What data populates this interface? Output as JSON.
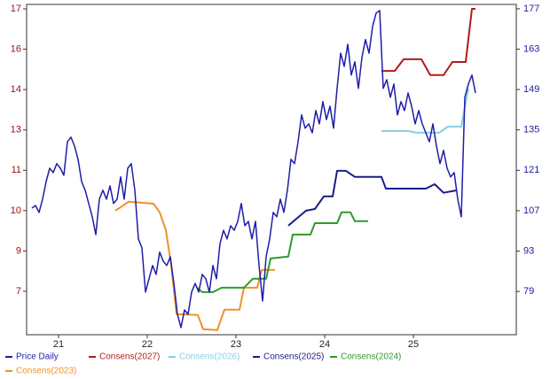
{
  "chart_data": {
    "type": "line",
    "xlim": [
      20.64,
      26.16
    ],
    "xticks": [
      21,
      22,
      23,
      24,
      25
    ],
    "ylim": [
      5.54,
      17.41
    ],
    "yticks": [
      {
        "value": 7.1,
        "label": "7"
      },
      {
        "value": 8.55,
        "label": "9"
      },
      {
        "value": 10.0,
        "label": "10"
      },
      {
        "value": 11.45,
        "label": "11"
      },
      {
        "value": 12.9,
        "label": "13"
      },
      {
        "value": 14.35,
        "label": "14"
      },
      {
        "value": 15.8,
        "label": "16"
      },
      {
        "value": 17.25,
        "label": "17"
      }
    ],
    "y2lim": [
      64,
      178.5
    ],
    "y2ticks": [
      79,
      93,
      107,
      121,
      135,
      149,
      163,
      177
    ],
    "series": [
      {
        "name": "Price Daily",
        "color": "#1e1ea8",
        "axis": "y2",
        "x": [
          20.7,
          20.74,
          20.78,
          20.82,
          20.86,
          20.9,
          20.94,
          20.98,
          21.02,
          21.06,
          21.1,
          21.14,
          21.18,
          21.22,
          21.26,
          21.3,
          21.34,
          21.38,
          21.42,
          21.46,
          21.5,
          21.54,
          21.58,
          21.62,
          21.66,
          21.7,
          21.74,
          21.78,
          21.82,
          21.86,
          21.9,
          21.94,
          21.98,
          22.02,
          22.06,
          22.1,
          22.14,
          22.18,
          22.22,
          22.26,
          22.3,
          22.34,
          22.38,
          22.42,
          22.46,
          22.5,
          22.54,
          22.58,
          22.62,
          22.66,
          22.7,
          22.74,
          22.78,
          22.82,
          22.86,
          22.9,
          22.94,
          22.98,
          23.02,
          23.06,
          23.1,
          23.14,
          23.18,
          23.22,
          23.26,
          23.3,
          23.34,
          23.38,
          23.42,
          23.46,
          23.5,
          23.54,
          23.58,
          23.62,
          23.66,
          23.7,
          23.74,
          23.78,
          23.82,
          23.86,
          23.9,
          23.94,
          23.98,
          24.02,
          24.06,
          24.1,
          24.14,
          24.18,
          24.22,
          24.26,
          24.3,
          24.34,
          24.38,
          24.42,
          24.46,
          24.5,
          24.54,
          24.58,
          24.62,
          24.66,
          24.7,
          24.74,
          24.78,
          24.82,
          24.86,
          24.9,
          24.94,
          24.98,
          25.02,
          25.06,
          25.1,
          25.14,
          25.18,
          25.22,
          25.26,
          25.3,
          25.34,
          25.38,
          25.42,
          25.46,
          25.5,
          25.54,
          25.58,
          25.62,
          25.66,
          25.7
        ],
        "values": [
          107.9,
          108.8,
          106.4,
          111.0,
          117.1,
          121.7,
          120.2,
          123.3,
          121.7,
          119.3,
          130.9,
          132.5,
          129.4,
          124.8,
          117.1,
          114.1,
          109.5,
          104.9,
          98.7,
          111.0,
          114.1,
          111.0,
          115.6,
          109.5,
          111.0,
          118.7,
          111.0,
          121.7,
          123.3,
          114.1,
          97.2,
          94.1,
          78.8,
          83.4,
          88.0,
          84.9,
          92.6,
          89.5,
          88.0,
          91.0,
          81.8,
          71.1,
          66.5,
          72.6,
          71.1,
          78.8,
          81.8,
          78.8,
          84.9,
          83.4,
          78.8,
          88.0,
          83.4,
          95.6,
          100.2,
          97.2,
          101.8,
          100.2,
          103.3,
          109.5,
          101.8,
          103.3,
          97.2,
          103.3,
          88.0,
          75.7,
          91.0,
          97.2,
          106.4,
          104.9,
          111.0,
          106.4,
          114.1,
          124.8,
          123.3,
          130.9,
          140.2,
          135.6,
          137.1,
          134.0,
          141.7,
          137.1,
          144.8,
          138.6,
          143.2,
          135.6,
          149.4,
          161.6,
          157.0,
          164.7,
          154.0,
          158.6,
          149.4,
          160.1,
          166.3,
          161.6,
          170.9,
          175.5,
          176.4,
          149.4,
          152.4,
          146.3,
          150.9,
          140.2,
          144.8,
          141.7,
          147.8,
          143.2,
          137.1,
          141.7,
          137.1,
          134.0,
          130.9,
          137.1,
          129.4,
          123.3,
          127.9,
          121.7,
          118.7,
          120.2,
          111.0,
          104.9,
          146.3,
          150.9,
          154.0,
          147.8
        ]
      },
      {
        "name": "Consens(2027)",
        "color": "#b01c1c",
        "x": [
          24.64,
          24.79,
          24.89,
          25.09,
          25.19,
          25.34,
          25.44,
          25.59,
          25.66,
          25.7
        ],
        "values": [
          15.02,
          15.02,
          15.44,
          15.44,
          14.87,
          14.87,
          15.34,
          15.34,
          17.25,
          17.25
        ]
      },
      {
        "name": "Consens(2026)",
        "color": "#88cfe8",
        "x": [
          24.64,
          24.94,
          25.04,
          25.29,
          25.39,
          25.54,
          25.62
        ],
        "values": [
          12.86,
          12.86,
          12.8,
          12.8,
          13.02,
          13.02,
          14.39
        ]
      },
      {
        "name": "Consens(2025)",
        "color": "#1c1c8c",
        "x": [
          23.59,
          23.79,
          23.89,
          23.99,
          24.09,
          24.14,
          24.24,
          24.34,
          24.49,
          24.64,
          24.69,
          25.14,
          25.24,
          25.34,
          25.49
        ],
        "values": [
          9.46,
          10.0,
          10.06,
          10.51,
          10.51,
          11.43,
          11.43,
          11.21,
          11.21,
          11.21,
          10.79,
          10.79,
          10.95,
          10.64,
          10.73
        ]
      },
      {
        "name": "Consens(2024)",
        "color": "#2e9a2e",
        "x": [
          22.56,
          22.62,
          22.74,
          22.84,
          23.09,
          23.19,
          23.34,
          23.39,
          23.59,
          23.64,
          23.84,
          23.89,
          24.14,
          24.19,
          24.29,
          24.34,
          24.49
        ],
        "values": [
          7.23,
          7.07,
          7.07,
          7.23,
          7.23,
          7.55,
          7.55,
          8.28,
          8.35,
          9.14,
          9.14,
          9.55,
          9.55,
          9.94,
          9.94,
          9.62,
          9.62
        ]
      },
      {
        "name": "Consens(2023)",
        "color": "#f0902a",
        "x": [
          21.64,
          21.69,
          21.79,
          22.07,
          22.14,
          22.21,
          22.27,
          22.33,
          22.57,
          22.63,
          22.79,
          22.87,
          23.04,
          23.09,
          23.24,
          23.29,
          23.44
        ],
        "values": [
          10.0,
          10.1,
          10.32,
          10.25,
          9.94,
          9.3,
          8.03,
          6.28,
          6.25,
          5.74,
          5.71,
          6.44,
          6.44,
          7.23,
          7.23,
          7.87,
          7.87
        ]
      }
    ]
  }
}
